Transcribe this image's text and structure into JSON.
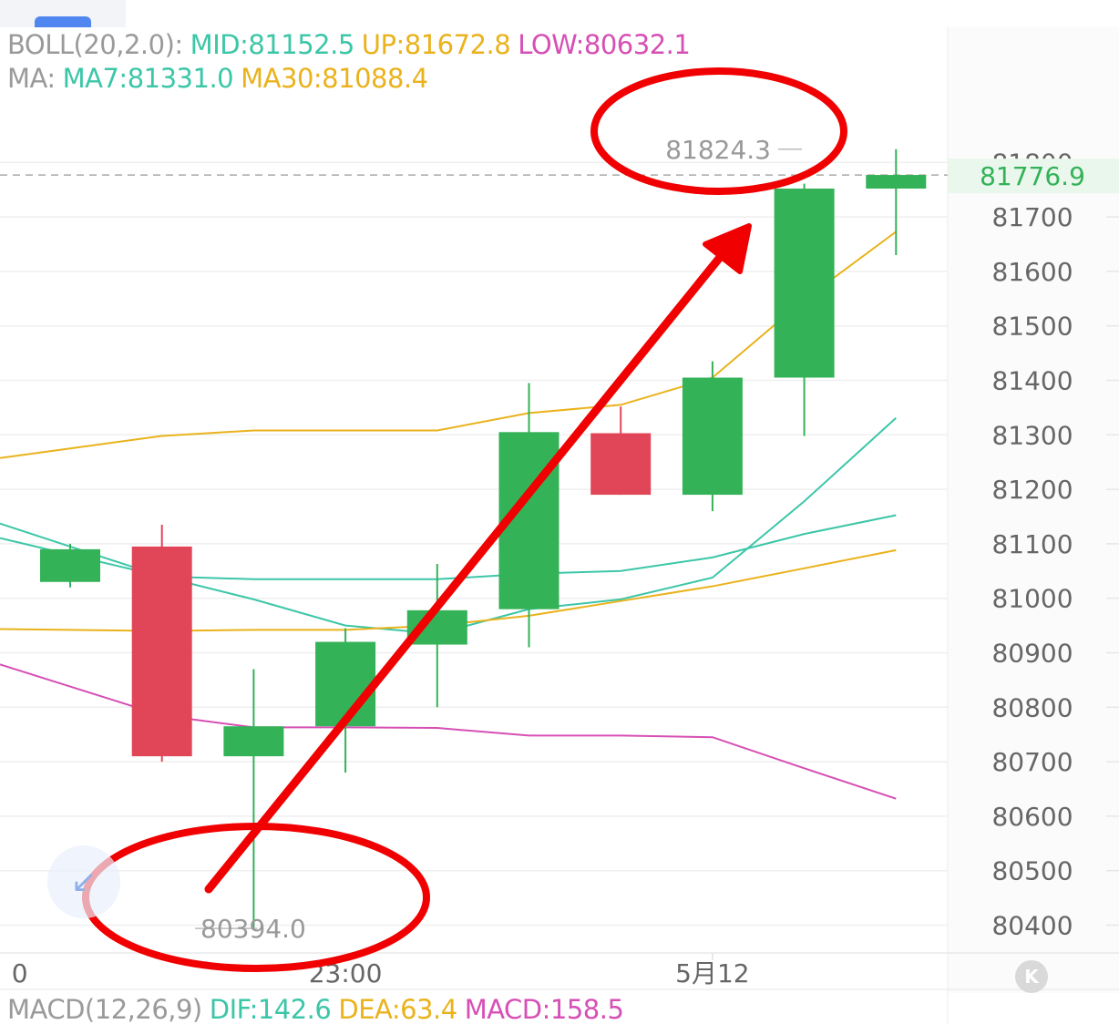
{
  "indicators": {
    "boll": {
      "label": "BOLL(20,2.0):",
      "mid": "MID:81152.5",
      "up": "UP:81672.8",
      "low": "LOW:80632.1"
    },
    "ma": {
      "label": "MA:",
      "ma7": "MA7:81331.0",
      "ma30": "MA30:81088.4"
    },
    "macd": {
      "label": "MACD(12,26,9)",
      "dif": "DIF:142.6",
      "dea": "DEA:63.4",
      "macd": "MACD:158.5"
    }
  },
  "colors": {
    "up": "#34b257",
    "down": "#e04657",
    "mid": "#3cc6a8",
    "upper": "#eab21c",
    "lower": "#d64fb5",
    "ma7": "#3cc6a8",
    "ma30": "#eab21c",
    "annotation": "#f00000",
    "price_tag_bg": "#e9f7ed",
    "price_tag_text": "#34b257"
  },
  "chart_data": {
    "type": "candlestick",
    "y_ticks": [
      80400,
      80500,
      80600,
      80700,
      80800,
      80900,
      81000,
      81100,
      81200,
      81300,
      81400,
      81500,
      81600,
      81700,
      81800
    ],
    "ylim": [
      80345,
      82050
    ],
    "x_ticks": [
      {
        "label": "0",
        "index": -0.55
      },
      {
        "label": "23:00",
        "index": 3
      },
      {
        "label": "5月12",
        "index": 7
      }
    ],
    "candles": [
      {
        "open": 81030,
        "close": 81090,
        "high": 81100,
        "low": 81020
      },
      {
        "open": 81095,
        "close": 80710,
        "high": 81135,
        "low": 80700
      },
      {
        "open": 80710,
        "close": 80765,
        "high": 80870,
        "low": 80394
      },
      {
        "open": 80765,
        "close": 80920,
        "high": 80945,
        "low": 80680
      },
      {
        "open": 80915,
        "close": 80978,
        "high": 81063,
        "low": 80800
      },
      {
        "open": 80980,
        "close": 81305,
        "high": 81395,
        "low": 80910
      },
      {
        "open": 81303,
        "close": 81190,
        "high": 81352,
        "low": 81190
      },
      {
        "open": 81190,
        "close": 81405,
        "high": 81435,
        "low": 81160
      },
      {
        "open": 81405,
        "close": 81752,
        "high": 81761,
        "low": 81298
      },
      {
        "open": 81752,
        "close": 81777,
        "high": 81824.3,
        "low": 81630
      }
    ],
    "series": [
      {
        "key": "boll_up",
        "values": [
          81275,
          81298,
          81308,
          81308,
          81308,
          81340,
          81355,
          81405,
          81548,
          81672.8
        ]
      },
      {
        "key": "boll_mid",
        "values": [
          81080,
          81040,
          81035,
          81035,
          81035,
          81045,
          81050,
          81075,
          81118,
          81152.5
        ]
      },
      {
        "key": "boll_low",
        "values": [
          80838,
          80785,
          80763,
          80763,
          80762,
          80748,
          80748,
          80745,
          80688,
          80632.1
        ]
      },
      {
        "key": "ma7",
        "values": [
          81095,
          81040,
          80998,
          80950,
          80935,
          80980,
          80998,
          81038,
          81178,
          81331.0
        ]
      },
      {
        "key": "ma30",
        "values": [
          80942,
          80940,
          80942,
          80942,
          80950,
          80968,
          80995,
          81022,
          81055,
          81088.4
        ]
      }
    ],
    "last_price": "81776.9",
    "high_label": "81824.3",
    "low_label": "80394.0",
    "hidden_tick": "81800"
  },
  "controls": {
    "k_button": "K",
    "fab_icon": "↙"
  }
}
